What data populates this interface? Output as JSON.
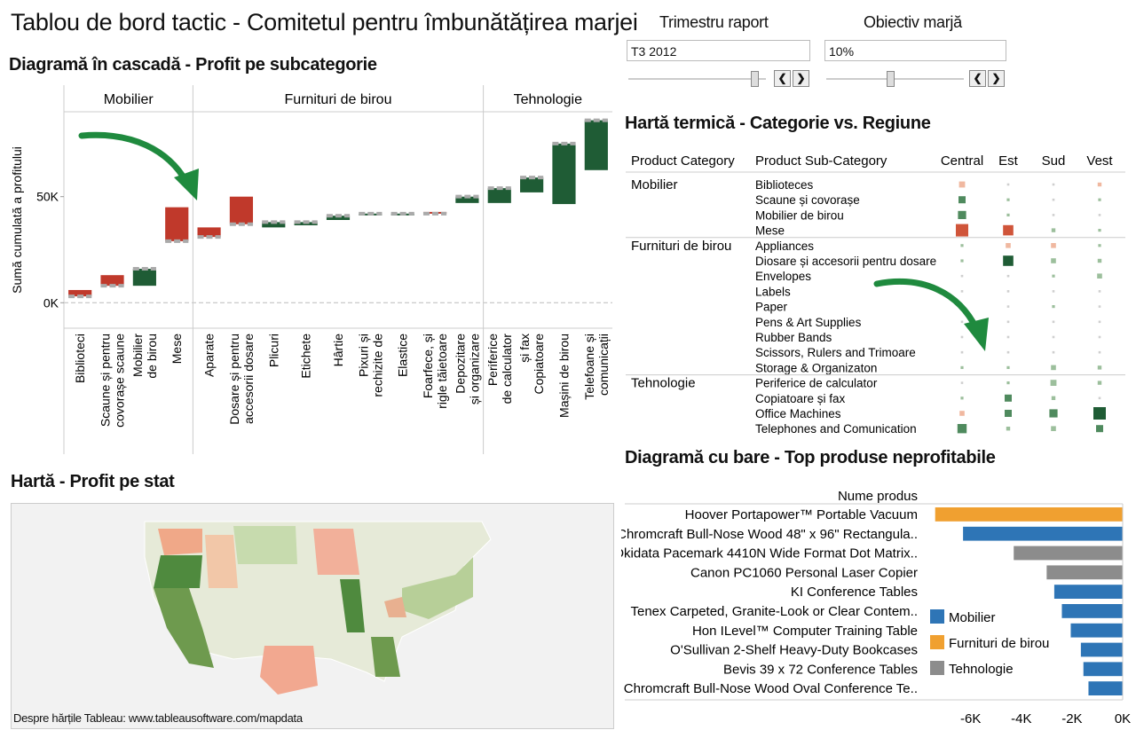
{
  "header": {
    "title": "Tablou de bord tactic - Comitetul pentru îmbunătățirea marjei"
  },
  "controls": {
    "quarter": {
      "label": "Trimestru raport",
      "value": "T3 2012"
    },
    "margin": {
      "label": "Obiectiv marjă",
      "value": "10%"
    }
  },
  "sections": {
    "waterfall": "Diagramă în cascadă - Profit pe subcategorie",
    "heatmap": "Hartă termică - Categorie vs. Regiune",
    "map": "Hartă - Profit pe stat",
    "bars": "Diagramă cu bare - Top produse neprofitabile"
  },
  "map": {
    "credit": "Despre hărțile Tableau: www.tableausoftware.com/mapdata"
  },
  "colors": {
    "positive": "#1f5c35",
    "negative": "#c0392b",
    "mobilier": "#2e75b6",
    "furnituri": "#f0a030",
    "tehnologie": "#8c8c8c"
  },
  "chart_data": [
    {
      "type": "bar",
      "subtype": "waterfall",
      "ylabel": "Sumă cumulată a profitului",
      "yticks": [
        "0K",
        "50K"
      ],
      "ylim": [
        -12000,
        90000
      ],
      "groups": [
        "Mobilier",
        "Furnituri de birou",
        "Tehnologie"
      ],
      "categories": [
        [
          "Biblioteci",
          "Mobilier"
        ],
        [
          "Scaune și covorașe pentru scaune",
          "Mobilier"
        ],
        [
          "Mobilier de birou",
          "Mobilier"
        ],
        [
          "Mese",
          "Mobilier"
        ],
        [
          "Aparate",
          "Furnituri de birou"
        ],
        [
          "Dosare și accesorii pentru dosare",
          "Furnituri de birou"
        ],
        [
          "Plicuri",
          "Furnituri de birou"
        ],
        [
          "Etichete",
          "Furnituri de birou"
        ],
        [
          "Hârtie",
          "Furnituri de birou"
        ],
        [
          "Pixuri și rechizite de",
          "Furnituri de birou"
        ],
        [
          "Elastice",
          "Furnituri de birou"
        ],
        [
          "Foarfece, rigle și tăietoare",
          "Furnituri de birou"
        ],
        [
          "Depozitare și organizare",
          "Furnituri de birou"
        ],
        [
          "Periferice de calculator",
          "Tehnologie"
        ],
        [
          "Copiatoare și fax",
          "Tehnologie"
        ],
        [
          "Mașini de birou",
          "Tehnologie"
        ],
        [
          "Telefoane și comunicații",
          "Tehnologie"
        ]
      ],
      "values": [
        -3000,
        -5000,
        8000,
        -16000,
        -4500,
        -13000,
        2500,
        1500,
        2000,
        500,
        500,
        -800,
        3000,
        7000,
        7000,
        28500,
        23500
      ],
      "cumulative": [
        3000,
        8000,
        16000,
        29000,
        31000,
        37000,
        38000,
        38000,
        41000,
        42000,
        42000,
        42000,
        50000,
        54000,
        59000,
        75000,
        86000
      ]
    },
    {
      "type": "heatmap",
      "row_header": "Product Category",
      "col_header": "Product Sub-Category",
      "columns": [
        "Central",
        "Est",
        "Sud",
        "Vest"
      ],
      "groups": [
        {
          "name": "Mobilier",
          "rows": [
            "Biblioteces",
            "Scaune și covorașe",
            "Mobilier de birou",
            "Mese"
          ]
        },
        {
          "name": "Furnituri de birou",
          "rows": [
            "Appliances",
            "Diosare și accesorii pentru dosare",
            "Envelopes",
            "Labels",
            "Paper",
            "Pens & Art Supplies",
            "Rubber Bands",
            "Scissors, Rulers and Trimoare",
            "Storage & Organizaton"
          ]
        },
        {
          "name": "Tehnologie",
          "rows": [
            "Periferice de calculator",
            "Copiatoare și fax",
            "Office Machines",
            "Telephones and Comunication"
          ]
        }
      ],
      "values": [
        [
          -0.4,
          0.05,
          0.05,
          -0.2
        ],
        [
          0.5,
          0.1,
          0.05,
          0.1
        ],
        [
          0.6,
          0.1,
          0.05,
          0.05
        ],
        [
          -1.0,
          -0.8,
          0.2,
          0.1
        ],
        [
          0.1,
          -0.3,
          -0.3,
          0.1
        ],
        [
          0.1,
          0.8,
          0.3,
          0.2
        ],
        [
          0.05,
          0.05,
          0.1,
          0.3
        ],
        [
          0.05,
          0.05,
          0.05,
          0.05
        ],
        [
          0.05,
          0.05,
          0.1,
          0.05
        ],
        [
          0.05,
          0.05,
          0.05,
          0.05
        ],
        [
          0.05,
          0.05,
          0.05,
          0.05
        ],
        [
          0.05,
          0.05,
          0.05,
          0.05
        ],
        [
          0.1,
          0.1,
          0.3,
          0.2
        ],
        [
          0.05,
          0.1,
          0.4,
          0.2
        ],
        [
          0.1,
          0.5,
          0.2,
          0.05
        ],
        [
          -0.3,
          0.5,
          0.6,
          1.0
        ],
        [
          0.7,
          0.2,
          0.3,
          0.5
        ]
      ]
    },
    {
      "type": "bar",
      "orientation": "horizontal",
      "ylabel": "Nume produs",
      "xticks": [
        "-6K",
        "-4K",
        "-2K",
        "0K"
      ],
      "xlim": [
        -7600,
        0
      ],
      "categories": [
        "Hoover Portapower™ Portable Vacuum",
        "Chromcraft Bull-Nose Wood 48\" x 96\" Rectangula..",
        "Okidata Pacemark 4410N Wide Format Dot Matrix..",
        "Canon PC1060 Personal Laser Copier",
        "KI Conference Tables",
        "Tenex Carpeted, Granite-Look or Clear Contem..",
        "Hon ILevel™ Computer Training Table",
        "O'Sullivan 2-Shelf Heavy-Duty Bookcases",
        "Bevis 39 x 72 Conference Tables",
        "Chromcraft Bull-Nose Wood Oval Conference Te.."
      ],
      "values": [
        -7400,
        -6300,
        -4300,
        -3000,
        -2700,
        -2400,
        -2050,
        -1650,
        -1550,
        -1350
      ],
      "series_of": [
        "Furnituri de birou",
        "Mobilier",
        "Tehnologie",
        "Tehnologie",
        "Mobilier",
        "Mobilier",
        "Mobilier",
        "Mobilier",
        "Mobilier",
        "Mobilier"
      ],
      "legend": [
        "Mobilier",
        "Furnituri de birou",
        "Tehnologie"
      ],
      "legend_position": "bottom-right"
    }
  ]
}
